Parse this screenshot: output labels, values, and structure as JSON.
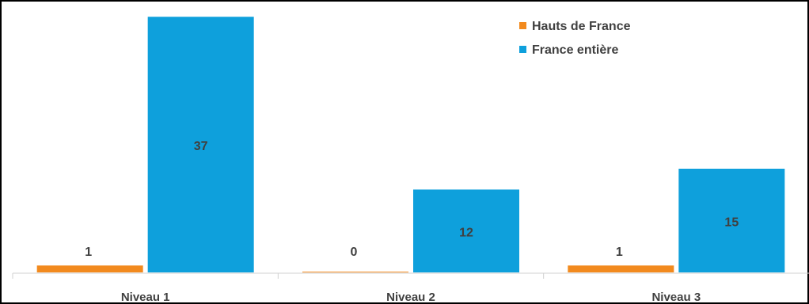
{
  "chart_data": {
    "type": "bar",
    "categories": [
      "Niveau 1",
      "Niveau 2",
      "Niveau 3"
    ],
    "series": [
      {
        "name": "Hauts de France",
        "values": [
          1,
          0,
          1
        ],
        "color": "#F28A1E"
      },
      {
        "name": "France entière",
        "values": [
          37,
          12,
          15
        ],
        "color": "#0EA0DC"
      }
    ],
    "ylim": [
      0,
      40
    ],
    "grid": false,
    "legend_position": "top-right",
    "data_labels": true
  }
}
